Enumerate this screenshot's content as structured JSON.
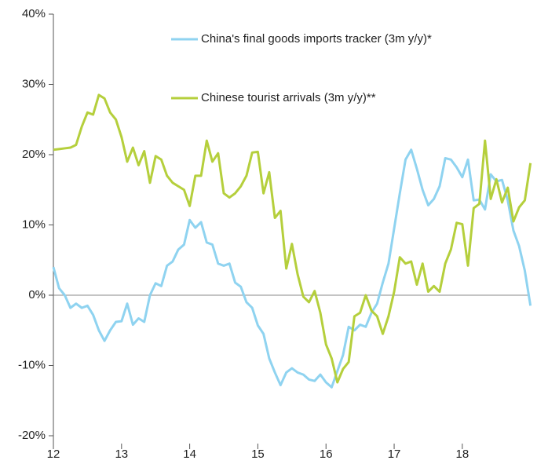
{
  "chart_data": {
    "type": "line",
    "x": [
      12,
      12.083,
      12.167,
      12.25,
      12.333,
      12.417,
      12.5,
      12.583,
      12.667,
      12.75,
      12.833,
      12.917,
      13,
      13.083,
      13.167,
      13.25,
      13.333,
      13.417,
      13.5,
      13.583,
      13.667,
      13.75,
      13.833,
      13.917,
      14,
      14.083,
      14.167,
      14.25,
      14.333,
      14.417,
      14.5,
      14.583,
      14.667,
      14.75,
      14.833,
      14.917,
      15,
      15.083,
      15.167,
      15.25,
      15.333,
      15.417,
      15.5,
      15.583,
      15.667,
      15.75,
      15.833,
      15.917,
      16,
      16.083,
      16.167,
      16.25,
      16.333,
      16.417,
      16.5,
      16.583,
      16.667,
      16.75,
      16.833,
      16.917,
      17,
      17.083,
      17.167,
      17.25,
      17.333,
      17.417,
      17.5,
      17.583,
      17.667,
      17.75,
      17.833,
      17.917,
      18,
      18.083,
      18.167,
      18.25,
      18.333,
      18.417,
      18.5,
      18.583,
      18.667,
      18.75,
      18.833,
      18.917,
      19
    ],
    "series": [
      {
        "name": "China's final goods imports tracker (3m y/y)*",
        "color": "#8fd3f0",
        "values": [
          4,
          1,
          0,
          -1.8,
          -1.2,
          -1.8,
          -1.5,
          -2.8,
          -5,
          -6.5,
          -5,
          -3.8,
          -3.7,
          -1.2,
          -4.2,
          -3.3,
          -3.8,
          0,
          1.7,
          1.3,
          4.2,
          4.8,
          6.5,
          7.2,
          10.7,
          9.6,
          10.4,
          7.5,
          7.2,
          4.5,
          4.2,
          4.5,
          1.8,
          1.2,
          -1,
          -1.8,
          -4.3,
          -5.5,
          -9,
          -11,
          -12.8,
          -11,
          -10.4,
          -11,
          -11.3,
          -12,
          -12.2,
          -11.3,
          -12.4,
          -13.1,
          -10.8,
          -8.5,
          -4.5,
          -5,
          -4.2,
          -4.5,
          -2.5,
          -1.2,
          1.8,
          4.5,
          9.5,
          14.5,
          19.3,
          20.7,
          18,
          15,
          12.8,
          13.7,
          15.5,
          19.5,
          19.3,
          18.2,
          16.8,
          19.3,
          13.5,
          13.6,
          12.2,
          17.2,
          16.2,
          16.4,
          13.5,
          9.2,
          7,
          3.5,
          -1.5
        ]
      },
      {
        "name": "Chinese tourist arrivals (3m y/y)**",
        "color": "#b5cf3c",
        "values": [
          20.7,
          20.8,
          20.9,
          21,
          21.4,
          24,
          26,
          25.7,
          28.5,
          28,
          26,
          25,
          22.5,
          19,
          21,
          18.5,
          20.5,
          16,
          19.8,
          19.3,
          17,
          16,
          15.5,
          15,
          12.7,
          17,
          17,
          22,
          19,
          20.2,
          14.5,
          13.9,
          14.5,
          15.5,
          17,
          20.3,
          20.4,
          14.5,
          17.5,
          11,
          12,
          3.8,
          7.3,
          3,
          -0.2,
          -1,
          0.6,
          -2.5,
          -7,
          -9,
          -12.4,
          -10.5,
          -9.5,
          -3,
          -2.5,
          0,
          -2.2,
          -3,
          -5.5,
          -3,
          0.5,
          5.4,
          4.5,
          4.8,
          1.5,
          4.5,
          0.5,
          1.3,
          0.5,
          4.5,
          6.5,
          10.3,
          10.1,
          4.2,
          12.4,
          13,
          22,
          13.7,
          16.5,
          13.2,
          15.3,
          10.5,
          12.5,
          13.5,
          18.8
        ]
      }
    ],
    "xlim": [
      12,
      19.05
    ],
    "xticks": [
      12,
      13,
      14,
      15,
      16,
      17,
      18
    ],
    "ylim": [
      -20,
      40
    ],
    "yticks": [
      {
        "value": -20,
        "label": "-20%"
      },
      {
        "value": -10,
        "label": "-10%"
      },
      {
        "value": 0,
        "label": "0%"
      },
      {
        "value": 10,
        "label": "10%"
      },
      {
        "value": 20,
        "label": "20%"
      },
      {
        "value": 30,
        "label": "30%"
      },
      {
        "value": 40,
        "label": "40%"
      }
    ],
    "legend": "upper right"
  }
}
